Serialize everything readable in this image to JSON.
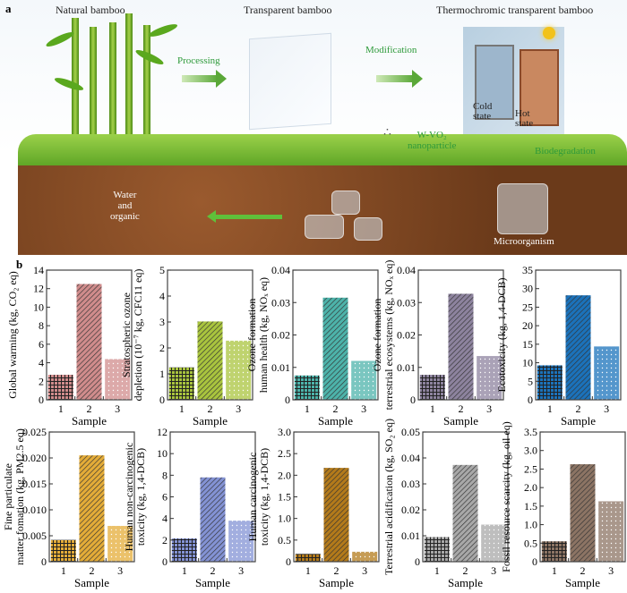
{
  "panel_a": {
    "label": "a",
    "natural": "Natural bamboo",
    "transparent": "Transparent bamboo",
    "thermo": "Thermochromic transparent bamboo",
    "processing": "Processing",
    "modification": "Modification",
    "cold": "Cold\nstate",
    "hot": "Hot\nstate",
    "nano": "W-VO₂\nnanoparticle",
    "biodeg": "Biodegradation",
    "water": "Water\nand\norganic",
    "micro": "Microorganism"
  },
  "panel_b": {
    "label": "b"
  },
  "chart_data": [
    {
      "type": "bar",
      "ylabel": [
        "Global warming (kg, CO₂ eq)"
      ],
      "xlabel": "Sample",
      "categories": [
        "1",
        "2",
        "3"
      ],
      "values": [
        2.7,
        12.5,
        4.4
      ],
      "ylim": [
        0,
        14
      ],
      "ticks": [
        "0",
        "2",
        "4",
        "6",
        "8",
        "10",
        "12",
        "14"
      ],
      "color": "#d08c8c"
    },
    {
      "type": "bar",
      "ylabel": [
        "Stratospheric ozone",
        "depletion (10⁻⁷ kg, CFC11 eq)"
      ],
      "xlabel": "Sample",
      "categories": [
        "1",
        "2",
        "3"
      ],
      "values": [
        1.25,
        3.02,
        2.28
      ],
      "ylim": [
        0,
        5
      ],
      "ticks": [
        "0",
        "1",
        "2",
        "3",
        "4",
        "5"
      ],
      "color": "#a9c43e"
    },
    {
      "type": "bar",
      "ylabel": [
        "Ozone formation",
        "human health (kg, NOₓ eq)"
      ],
      "xlabel": "Sample",
      "categories": [
        "1",
        "2",
        "3"
      ],
      "values": [
        0.0075,
        0.0315,
        0.012
      ],
      "ylim": [
        0,
        0.04
      ],
      "ticks": [
        "0",
        "0.01",
        "0.02",
        "0.03",
        "0.04"
      ],
      "color": "#4db3aa"
    },
    {
      "type": "bar",
      "ylabel": [
        "Ozone formation",
        "terrestrial ecosystems (kg, NOₓ eq)"
      ],
      "xlabel": "Sample",
      "categories": [
        "1",
        "2",
        "3"
      ],
      "values": [
        0.0077,
        0.0327,
        0.0135
      ],
      "ylim": [
        0,
        0.04
      ],
      "ticks": [
        "0",
        "0.01",
        "0.02",
        "0.03",
        "0.04"
      ],
      "color": "#8d839e"
    },
    {
      "type": "bar",
      "ylabel": [
        "Ecotoxicity (kg, 1,4-DCB)"
      ],
      "xlabel": "Sample",
      "categories": [
        "1",
        "2",
        "3"
      ],
      "values": [
        9.3,
        28.2,
        14.4
      ],
      "ylim": [
        0,
        35
      ],
      "ticks": [
        "0",
        "5",
        "10",
        "15",
        "20",
        "25",
        "30",
        "35"
      ],
      "color": "#1b72ba"
    },
    {
      "type": "bar",
      "ylabel": [
        "Fine particulate",
        "matter fomation (kg, PM2.5 eq)"
      ],
      "xlabel": "Sample",
      "categories": [
        "1",
        "2",
        "3"
      ],
      "values": [
        0.0042,
        0.0205,
        0.0069
      ],
      "ylim": [
        0,
        0.025
      ],
      "ticks": [
        "0",
        "0.005",
        "0.010",
        "0.015",
        "0.020",
        "0.025"
      ],
      "color": "#e4ac38"
    },
    {
      "type": "bar",
      "ylabel": [
        "Human non-carcinogenic",
        "toxicity (kg, 1,4-DCB)"
      ],
      "xlabel": "Sample",
      "categories": [
        "1",
        "2",
        "3"
      ],
      "values": [
        2.15,
        7.8,
        3.8
      ],
      "ylim": [
        0,
        12
      ],
      "ticks": [
        "0",
        "2",
        "4",
        "6",
        "8",
        "10",
        "12"
      ],
      "color": "#8392d4"
    },
    {
      "type": "bar",
      "ylabel": [
        "Human carcinogenic",
        "toxicity (kg, 1,4-DCB)"
      ],
      "xlabel": "Sample",
      "categories": [
        "1",
        "2",
        "3"
      ],
      "values": [
        0.18,
        2.17,
        0.23
      ],
      "ylim": [
        0,
        3.0
      ],
      "ticks": [
        "0",
        "0.5",
        "1.0",
        "1.5",
        "2.0",
        "2.5",
        "3.0"
      ],
      "color": "#b37a1a"
    },
    {
      "type": "bar",
      "ylabel": [
        "Terrestrial acidification (kg, SO₂ eq)"
      ],
      "xlabel": "Sample",
      "categories": [
        "1",
        "2",
        "3"
      ],
      "values": [
        0.0095,
        0.0373,
        0.0143
      ],
      "ylim": [
        0,
        0.05
      ],
      "ticks": [
        "0",
        "0.01",
        "0.02",
        "0.03",
        "0.04",
        "0.05"
      ],
      "color": "#a8a8a8"
    },
    {
      "type": "bar",
      "ylabel": [
        "Fossil resource scarcity (kg, oil eq)"
      ],
      "xlabel": "Sample",
      "categories": [
        "1",
        "2",
        "3"
      ],
      "values": [
        0.55,
        2.63,
        1.63
      ],
      "ylim": [
        0,
        3.5
      ],
      "ticks": [
        "0",
        "0.5",
        "1.0",
        "1.5",
        "2.0",
        "2.5",
        "3.0",
        "3.5"
      ],
      "color": "#8c7464"
    }
  ]
}
